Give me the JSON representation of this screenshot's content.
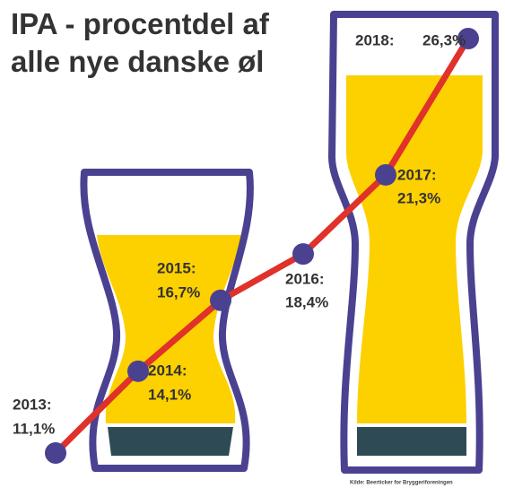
{
  "chart_data": {
    "type": "line",
    "title": "IPA - procentdel af alle nye danske øl",
    "categories": [
      "2013:",
      "2014:",
      "2015:",
      "2016:",
      "2017:",
      "2018:"
    ],
    "values": [
      11.1,
      14.1,
      16.7,
      18.4,
      21.3,
      26.3
    ],
    "value_labels": [
      "11,1%",
      "14,1%",
      "16,7%",
      "18,4%",
      "21,3%",
      "26,3%"
    ],
    "color": "#e0312a",
    "marker_color": "#4b4191",
    "source": "Kilde: Beerticker for Bryggeriforeningen"
  }
}
